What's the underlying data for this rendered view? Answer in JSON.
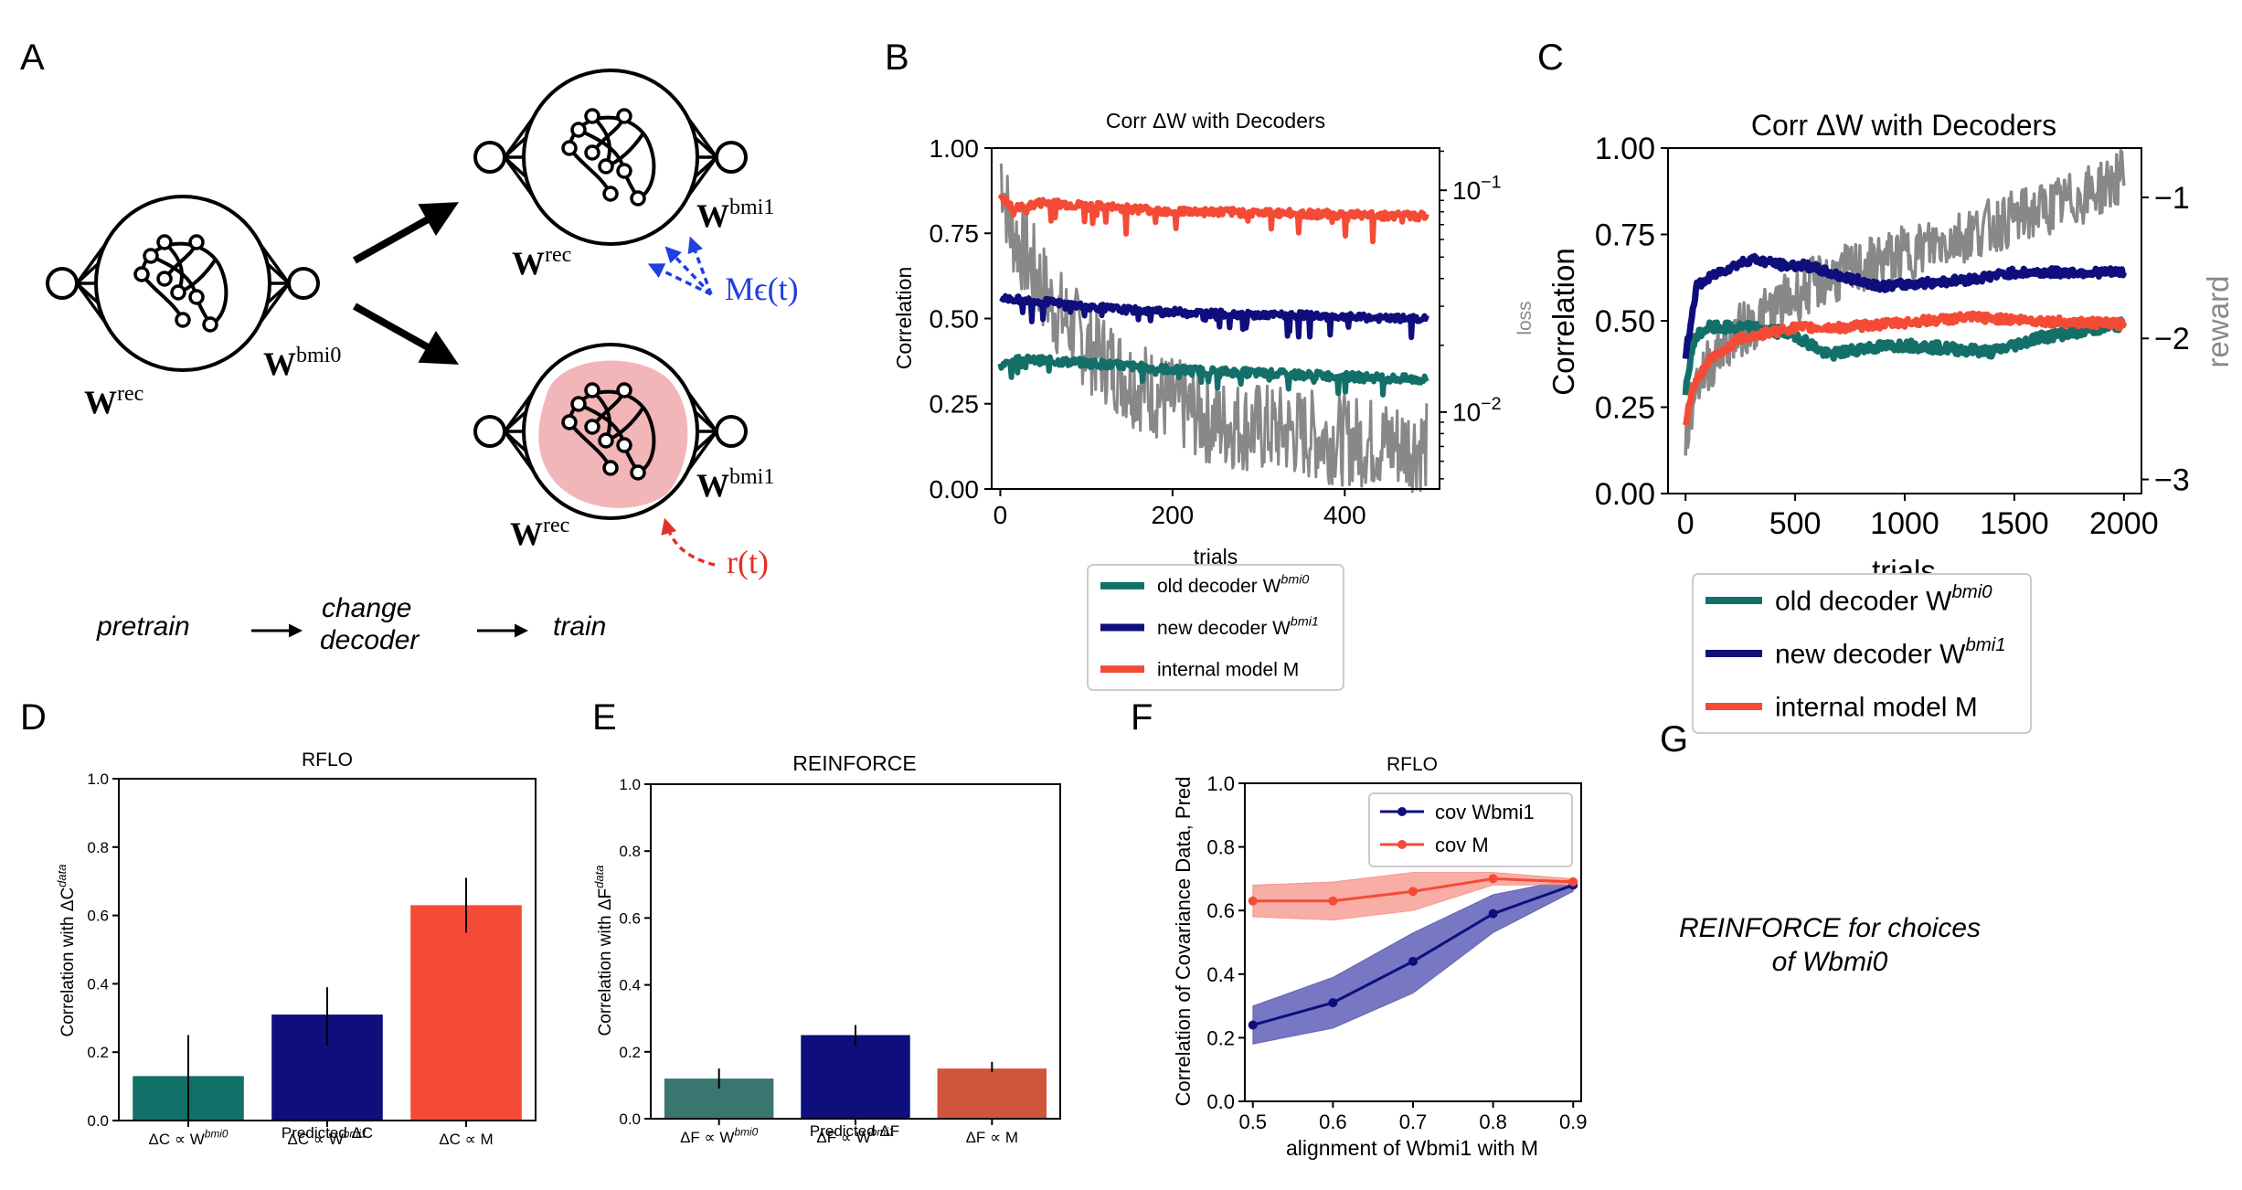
{
  "panel_letters": {
    "A": "A",
    "B": "B",
    "C": "C",
    "D": "D",
    "E": "E",
    "F": "F",
    "G": "G"
  },
  "panelA": {
    "wrec": "W",
    "wrec_sup": "rec",
    "wbmi0": "W",
    "wbmi0_sup": "bmi0",
    "wbmi1": "W",
    "wbmi1_sup": "bmi1",
    "m_eps": "Mϵ(t)",
    "r_t": "r(t)",
    "flow": {
      "step1": "pretrain",
      "step2a": "change",
      "step2b": "decoder",
      "step3": "train"
    },
    "colors": {
      "blue": "#1f3fe0",
      "red": "#e4302a",
      "pink": "#f2b6b8"
    }
  },
  "panelG": {
    "line1": "REINFORCE for choices",
    "line2": "of Wbmi0"
  },
  "chart_data": [
    {
      "id": "B",
      "type": "line",
      "title": "Corr ΔW with Decoders",
      "xlabel": "trials",
      "ylabel": "Correlation",
      "y2label": "loss",
      "xlim": [
        -10,
        510
      ],
      "ylim": [
        0,
        1
      ],
      "y2scale": "log",
      "y2lim": [
        0.0045,
        0.155
      ],
      "xticks": [
        0,
        200,
        400
      ],
      "yticks": [
        "0.00",
        "0.25",
        "0.50",
        "0.75",
        "1.00"
      ],
      "y2ticks": [
        {
          "label": "10",
          "exp": "−2",
          "value": 0.01
        },
        {
          "label": "10",
          "exp": "−1",
          "value": 0.1
        }
      ],
      "series": [
        {
          "name": "old decoder",
          "sup": "bmi0",
          "color": "#127068",
          "axis": "left",
          "points": [
            [
              0,
              0.36
            ],
            [
              20,
              0.38
            ],
            [
              60,
              0.375
            ],
            [
              100,
              0.37
            ],
            [
              150,
              0.36
            ],
            [
              200,
              0.35
            ],
            [
              250,
              0.345
            ],
            [
              300,
              0.34
            ],
            [
              350,
              0.335
            ],
            [
              400,
              0.33
            ],
            [
              450,
              0.325
            ],
            [
              495,
              0.32
            ]
          ],
          "noise": 0.012,
          "dips": 0.04
        },
        {
          "name": "new decoder",
          "sup": "bmi1",
          "color": "#0e0e7c",
          "axis": "left",
          "points": [
            [
              0,
              0.56
            ],
            [
              50,
              0.55
            ],
            [
              100,
              0.535
            ],
            [
              150,
              0.525
            ],
            [
              200,
              0.52
            ],
            [
              250,
              0.515
            ],
            [
              300,
              0.51
            ],
            [
              350,
              0.51
            ],
            [
              400,
              0.505
            ],
            [
              450,
              0.5
            ],
            [
              495,
              0.5
            ]
          ],
          "noise": 0.01,
          "dips": 0.06
        },
        {
          "name": "internal model M",
          "sup": "",
          "color": "#f44b36",
          "axis": "left",
          "points": [
            [
              0,
              0.86
            ],
            [
              15,
              0.82
            ],
            [
              50,
              0.84
            ],
            [
              100,
              0.83
            ],
            [
              200,
              0.815
            ],
            [
              300,
              0.81
            ],
            [
              400,
              0.805
            ],
            [
              495,
              0.8
            ]
          ],
          "noise": 0.012,
          "dips": 0.08
        },
        {
          "name": "loss",
          "sup": "",
          "color": "#888888",
          "axis": "right",
          "points": [
            [
              0,
              0.13
            ],
            [
              10,
              0.07
            ],
            [
              30,
              0.05
            ],
            [
              60,
              0.03
            ],
            [
              100,
              0.02
            ],
            [
              150,
              0.014
            ],
            [
              200,
              0.011
            ],
            [
              250,
              0.009
            ],
            [
              300,
              0.0085
            ],
            [
              350,
              0.008
            ],
            [
              400,
              0.0075
            ],
            [
              450,
              0.0072
            ],
            [
              495,
              0.007
            ]
          ],
          "noise": 0.12,
          "dips": 0
        }
      ],
      "legend": "below"
    },
    {
      "id": "C",
      "type": "line",
      "title": "Corr ΔW with Decoders",
      "xlabel": "trials",
      "ylabel": "Correlation",
      "y2label": "reward",
      "xlim": [
        -80,
        2080
      ],
      "ylim": [
        0,
        1
      ],
      "y2lim": [
        -3.1,
        -0.65
      ],
      "xticks": [
        0,
        500,
        1000,
        1500,
        2000
      ],
      "yticks": [
        "0.00",
        "0.25",
        "0.50",
        "0.75",
        "1.00"
      ],
      "y2ticks": [
        {
          "label": "−1",
          "value": -1
        },
        {
          "label": "−2",
          "value": -2
        },
        {
          "label": "−3",
          "value": -3
        }
      ],
      "series": [
        {
          "name": "old decoder",
          "sup": "bmi0",
          "color": "#127068",
          "axis": "left",
          "points": [
            [
              0,
              0.3
            ],
            [
              40,
              0.45
            ],
            [
              100,
              0.48
            ],
            [
              300,
              0.48
            ],
            [
              500,
              0.46
            ],
            [
              650,
              0.4
            ],
            [
              800,
              0.42
            ],
            [
              1000,
              0.43
            ],
            [
              1200,
              0.42
            ],
            [
              1400,
              0.41
            ],
            [
              1600,
              0.45
            ],
            [
              1800,
              0.47
            ],
            [
              2000,
              0.49
            ]
          ],
          "noise": 0.015,
          "dips": 0
        },
        {
          "name": "new decoder",
          "sup": "bmi1",
          "color": "#0e0e7c",
          "axis": "left",
          "points": [
            [
              0,
              0.4
            ],
            [
              50,
              0.6
            ],
            [
              150,
              0.64
            ],
            [
              300,
              0.68
            ],
            [
              450,
              0.66
            ],
            [
              550,
              0.66
            ],
            [
              700,
              0.63
            ],
            [
              900,
              0.6
            ],
            [
              1100,
              0.61
            ],
            [
              1300,
              0.62
            ],
            [
              1500,
              0.64
            ],
            [
              1700,
              0.64
            ],
            [
              2000,
              0.64
            ]
          ],
          "noise": 0.012,
          "dips": 0
        },
        {
          "name": "internal model M",
          "sup": "",
          "color": "#f44b36",
          "axis": "left",
          "points": [
            [
              0,
              0.2
            ],
            [
              30,
              0.3
            ],
            [
              100,
              0.38
            ],
            [
              250,
              0.45
            ],
            [
              500,
              0.48
            ],
            [
              700,
              0.48
            ],
            [
              900,
              0.49
            ],
            [
              1100,
              0.5
            ],
            [
              1300,
              0.51
            ],
            [
              1600,
              0.5
            ],
            [
              2000,
              0.49
            ]
          ],
          "noise": 0.012,
          "dips": 0
        },
        {
          "name": "reward",
          "sup": "",
          "color": "#888888",
          "axis": "right",
          "points": [
            [
              0,
              -2.7
            ],
            [
              50,
              -2.3
            ],
            [
              200,
              -2.0
            ],
            [
              400,
              -1.8
            ],
            [
              600,
              -1.6
            ],
            [
              800,
              -1.5
            ],
            [
              1000,
              -1.4
            ],
            [
              1200,
              -1.3
            ],
            [
              1400,
              -1.2
            ],
            [
              1600,
              -1.1
            ],
            [
              1800,
              -1.0
            ],
            [
              2000,
              -0.85
            ]
          ],
          "noise": 0.09,
          "dips": 0
        }
      ],
      "legend": "below"
    },
    {
      "id": "D",
      "type": "bar",
      "title": "RFLO",
      "xlabel": "Predicted ΔC",
      "ylabel": "Correlation with ΔC",
      "ylabel_sup": "data",
      "ylim": [
        0,
        1
      ],
      "yticks": [
        "0.0",
        "0.2",
        "0.4",
        "0.6",
        "0.8",
        "1.0"
      ],
      "categories": [
        {
          "main": "ΔC ∝ W",
          "sup": "bmi0"
        },
        {
          "main": "ΔC ∝ W",
          "sup": "bmi1"
        },
        {
          "main": "ΔC ∝ M",
          "sup": ""
        }
      ],
      "values": [
        0.13,
        0.31,
        0.63
      ],
      "errors": [
        [
          0.0,
          0.25
        ],
        [
          0.22,
          0.39
        ],
        [
          0.55,
          0.71
        ]
      ],
      "colors": [
        "#127068",
        "#0e0e7c",
        "#f44b36"
      ]
    },
    {
      "id": "E",
      "type": "bar",
      "title": "REINFORCE",
      "xlabel": "Predicted ΔF",
      "ylabel": "Correlation with ΔF",
      "ylabel_sup": "data",
      "ylim": [
        0,
        1
      ],
      "yticks": [
        "0.0",
        "0.2",
        "0.4",
        "0.6",
        "0.8",
        "1.0"
      ],
      "categories": [
        {
          "main": "ΔF ∝ W",
          "sup": "bmi0"
        },
        {
          "main": "ΔF ∝ W",
          "sup": "bmi1"
        },
        {
          "main": "ΔF ∝ M",
          "sup": ""
        }
      ],
      "values": [
        0.12,
        0.25,
        0.15
      ],
      "errors": [
        [
          0.09,
          0.15
        ],
        [
          0.22,
          0.28
        ],
        [
          0.14,
          0.17
        ]
      ],
      "colors": [
        "#3b7570",
        "#0e0e7c",
        "#d1553c"
      ]
    },
    {
      "id": "F",
      "type": "line",
      "title": "RFLO",
      "xlabel": "alignment of Wbmi1 with M",
      "ylabel": "Correlation of Covariance Data, Pred",
      "xlim": [
        0.49,
        0.91
      ],
      "ylim": [
        0,
        1
      ],
      "xticks": [
        "0.5",
        "0.6",
        "0.7",
        "0.8",
        "0.9"
      ],
      "yticks": [
        "0.0",
        "0.2",
        "0.4",
        "0.6",
        "0.8",
        "1.0"
      ],
      "series": [
        {
          "name": "cov Wbmi1",
          "color": "#0e0e7c",
          "band": "#5f5fb8",
          "x": [
            0.5,
            0.6,
            0.7,
            0.8,
            0.9
          ],
          "y": [
            0.24,
            0.31,
            0.44,
            0.59,
            0.68
          ],
          "lo": [
            0.18,
            0.23,
            0.34,
            0.53,
            0.66
          ],
          "hi": [
            0.3,
            0.39,
            0.53,
            0.65,
            0.7
          ]
        },
        {
          "name": "cov M",
          "color": "#f44b36",
          "band": "#f7a096",
          "x": [
            0.5,
            0.6,
            0.7,
            0.8,
            0.9
          ],
          "y": [
            0.63,
            0.63,
            0.66,
            0.7,
            0.69
          ],
          "lo": [
            0.58,
            0.57,
            0.6,
            0.68,
            0.68
          ],
          "hi": [
            0.68,
            0.69,
            0.72,
            0.72,
            0.7
          ]
        }
      ],
      "legend": "top-right"
    }
  ]
}
